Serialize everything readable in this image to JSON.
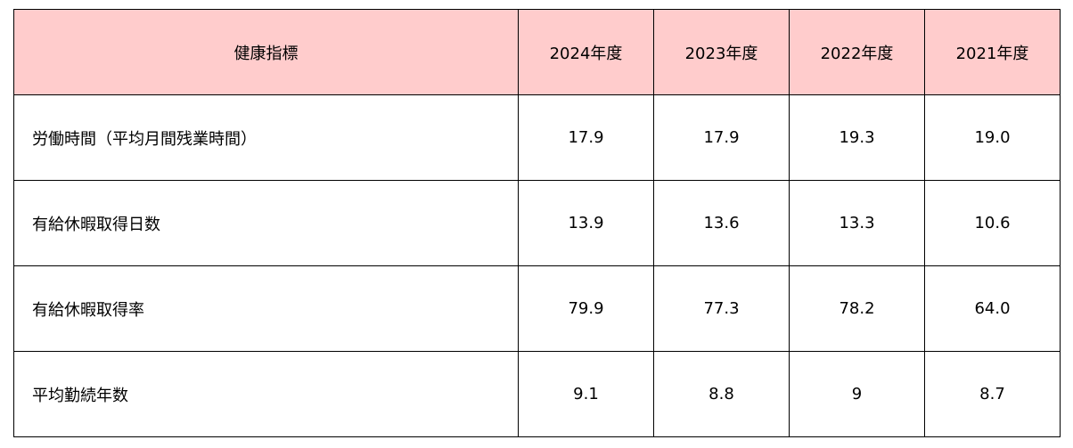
{
  "table": {
    "header": [
      "健康指標",
      "2024年度",
      "2023年度",
      "2022年度",
      "2021年度"
    ],
    "rows": [
      [
        "労働時間（平均月間残業時間）",
        "17.9",
        "17.9",
        "19.3",
        "19.0"
      ],
      [
        "有給休暇取得日数",
        "13.9",
        "13.6",
        "13.3",
        "10.6"
      ],
      [
        "有給休暇取得率",
        "79.9",
        "77.3",
        "78.2",
        "64.0"
      ],
      [
        "平均勤続年数",
        "9.1",
        "8.8",
        "9",
        "8.7"
      ]
    ]
  }
}
